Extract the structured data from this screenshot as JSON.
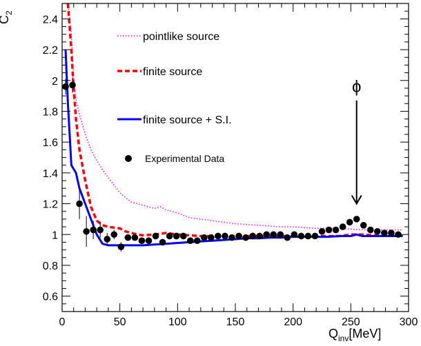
{
  "chart_data": {
    "type": "line",
    "title": "",
    "xlabel": {
      "main": "Q",
      "sub": "inv",
      "unit": "[MeV]"
    },
    "ylabel": {
      "main": "C",
      "sub": "2"
    },
    "xlim": [
      0,
      300
    ],
    "ylim": [
      0.5,
      2.5
    ],
    "x_ticks": [
      0,
      50,
      100,
      150,
      200,
      250,
      300
    ],
    "y_ticks": [
      0.6,
      0.8,
      1,
      1.2,
      1.4,
      1.6,
      1.8,
      2,
      2.2,
      2.4
    ],
    "x_tick_labels": [
      "0",
      "50",
      "100",
      "150",
      "200",
      "250",
      "300"
    ],
    "y_tick_labels": [
      "0.6",
      "0.8",
      "1",
      "1.2",
      "1.4",
      "1.6",
      "1.8",
      "2",
      "2.2",
      "2.4"
    ],
    "legend": {
      "placement": "upper-center",
      "entries": [
        {
          "label": "pointlike source",
          "series": "pointlike"
        },
        {
          "label": "finite source",
          "series": "finite"
        },
        {
          "label": "finite source + S.I.",
          "series": "finite_si"
        },
        {
          "label": "Experimental Data",
          "series": "data"
        }
      ]
    },
    "annotation": {
      "label": "ϕ",
      "x": 255,
      "arrow_from_y": 1.96,
      "arrow_to_y": 1.2
    },
    "series": [
      {
        "key": "pointlike",
        "style": "dotted",
        "color": "#ff00ff",
        "points": [
          [
            5,
            2.5
          ],
          [
            8,
            2.3
          ],
          [
            10,
            2.0
          ],
          [
            12,
            1.88
          ],
          [
            15,
            1.78
          ],
          [
            20,
            1.65
          ],
          [
            25,
            1.55
          ],
          [
            30,
            1.48
          ],
          [
            35,
            1.42
          ],
          [
            40,
            1.37
          ],
          [
            45,
            1.32
          ],
          [
            50,
            1.27
          ],
          [
            55,
            1.24
          ],
          [
            60,
            1.21
          ],
          [
            70,
            1.19
          ],
          [
            80,
            1.17
          ],
          [
            85,
            1.18
          ],
          [
            90,
            1.16
          ],
          [
            100,
            1.14
          ],
          [
            110,
            1.11
          ],
          [
            120,
            1.1
          ],
          [
            130,
            1.09
          ],
          [
            140,
            1.08
          ],
          [
            150,
            1.07
          ],
          [
            160,
            1.065
          ],
          [
            170,
            1.06
          ],
          [
            180,
            1.055
          ],
          [
            190,
            1.05
          ],
          [
            200,
            1.05
          ],
          [
            210,
            1.045
          ],
          [
            220,
            1.04
          ],
          [
            230,
            1.04
          ],
          [
            240,
            1.04
          ],
          [
            250,
            1.035
          ],
          [
            260,
            1.03
          ],
          [
            270,
            1.03
          ],
          [
            280,
            1.03
          ],
          [
            290,
            1.03
          ],
          [
            295,
            1.03
          ]
        ]
      },
      {
        "key": "finite",
        "style": "dashed",
        "color": "#ff0000",
        "points": [
          [
            5,
            2.5
          ],
          [
            8,
            2.2
          ],
          [
            10,
            1.95
          ],
          [
            12,
            1.75
          ],
          [
            15,
            1.55
          ],
          [
            20,
            1.35
          ],
          [
            25,
            1.18
          ],
          [
            30,
            1.09
          ],
          [
            35,
            1.06
          ],
          [
            40,
            1.05
          ],
          [
            50,
            1.04
          ],
          [
            55,
            1.02
          ],
          [
            60,
            1.01
          ],
          [
            65,
            1.0
          ],
          [
            70,
            0.995
          ],
          [
            80,
            1.0
          ],
          [
            90,
            1.01
          ],
          [
            100,
            1.0
          ],
          [
            110,
            0.995
          ],
          [
            120,
            0.99
          ],
          [
            130,
            0.99
          ],
          [
            140,
            0.99
          ],
          [
            150,
            0.99
          ],
          [
            160,
            0.99
          ],
          [
            170,
            0.99
          ],
          [
            180,
            0.99
          ],
          [
            190,
            0.99
          ],
          [
            200,
            0.99
          ],
          [
            210,
            0.99
          ],
          [
            220,
            0.99
          ],
          [
            230,
            0.99
          ],
          [
            240,
            0.99
          ],
          [
            250,
            1.0
          ],
          [
            260,
            1.0
          ],
          [
            270,
            0.995
          ],
          [
            280,
            0.995
          ],
          [
            290,
            0.995
          ],
          [
            295,
            0.995
          ]
        ]
      },
      {
        "key": "finite_si",
        "style": "solid",
        "color": "#0000ff",
        "points": [
          [
            3,
            2.2
          ],
          [
            5,
            1.85
          ],
          [
            8,
            1.45
          ],
          [
            12,
            1.4
          ],
          [
            15,
            1.3
          ],
          [
            20,
            1.2
          ],
          [
            25,
            1.1
          ],
          [
            30,
            1.0
          ],
          [
            35,
            0.94
          ],
          [
            40,
            0.93
          ],
          [
            50,
            0.93
          ],
          [
            60,
            0.93
          ],
          [
            70,
            0.93
          ],
          [
            80,
            0.935
          ],
          [
            90,
            0.94
          ],
          [
            100,
            0.945
          ],
          [
            110,
            0.95
          ],
          [
            120,
            0.955
          ],
          [
            130,
            0.96
          ],
          [
            140,
            0.965
          ],
          [
            150,
            0.97
          ],
          [
            160,
            0.975
          ],
          [
            170,
            0.975
          ],
          [
            180,
            0.98
          ],
          [
            190,
            0.98
          ],
          [
            200,
            0.985
          ],
          [
            210,
            0.985
          ],
          [
            220,
            0.985
          ],
          [
            230,
            0.985
          ],
          [
            240,
            0.99
          ],
          [
            250,
            0.99
          ],
          [
            255,
            1.0
          ],
          [
            260,
            0.99
          ],
          [
            270,
            0.99
          ],
          [
            280,
            0.99
          ],
          [
            290,
            0.99
          ],
          [
            295,
            0.99
          ]
        ]
      }
    ],
    "data_points": [
      {
        "x": 3,
        "y": 1.96,
        "err": 0.05
      },
      {
        "x": 9,
        "y": 1.97,
        "err": 0.05
      },
      {
        "x": 15,
        "y": 1.2,
        "err": 0.1
      },
      {
        "x": 21,
        "y": 1.02,
        "err": 0.1
      },
      {
        "x": 27,
        "y": 1.03,
        "err": 0.06
      },
      {
        "x": 33,
        "y": 1.03,
        "err": 0.05
      },
      {
        "x": 39,
        "y": 0.97,
        "err": 0.04
      },
      {
        "x": 45,
        "y": 1.0,
        "err": 0.03
      },
      {
        "x": 51,
        "y": 0.92,
        "err": 0.03
      },
      {
        "x": 57,
        "y": 0.98,
        "err": 0.02
      },
      {
        "x": 63,
        "y": 0.98,
        "err": 0.02
      },
      {
        "x": 69,
        "y": 0.96,
        "err": 0.02
      },
      {
        "x": 75,
        "y": 0.96,
        "err": 0.02
      },
      {
        "x": 81,
        "y": 0.99,
        "err": 0.02
      },
      {
        "x": 87,
        "y": 0.95,
        "err": 0.02
      },
      {
        "x": 93,
        "y": 0.99,
        "err": 0.015
      },
      {
        "x": 99,
        "y": 0.99,
        "err": 0.015
      },
      {
        "x": 105,
        "y": 0.99,
        "err": 0.015
      },
      {
        "x": 111,
        "y": 0.96,
        "err": 0.015
      },
      {
        "x": 117,
        "y": 0.96,
        "err": 0.015
      },
      {
        "x": 123,
        "y": 0.98,
        "err": 0.015
      },
      {
        "x": 129,
        "y": 0.98,
        "err": 0.015
      },
      {
        "x": 135,
        "y": 0.99,
        "err": 0.015
      },
      {
        "x": 141,
        "y": 0.99,
        "err": 0.015
      },
      {
        "x": 147,
        "y": 0.98,
        "err": 0.015
      },
      {
        "x": 153,
        "y": 0.99,
        "err": 0.015
      },
      {
        "x": 159,
        "y": 0.98,
        "err": 0.015
      },
      {
        "x": 165,
        "y": 0.99,
        "err": 0.015
      },
      {
        "x": 171,
        "y": 0.99,
        "err": 0.015
      },
      {
        "x": 177,
        "y": 1.0,
        "err": 0.015
      },
      {
        "x": 183,
        "y": 1.0,
        "err": 0.015
      },
      {
        "x": 189,
        "y": 1.0,
        "err": 0.015
      },
      {
        "x": 195,
        "y": 0.98,
        "err": 0.015
      },
      {
        "x": 201,
        "y": 1.0,
        "err": 0.015
      },
      {
        "x": 207,
        "y": 0.99,
        "err": 0.015
      },
      {
        "x": 213,
        "y": 0.99,
        "err": 0.015
      },
      {
        "x": 219,
        "y": 0.99,
        "err": 0.015
      },
      {
        "x": 225,
        "y": 1.02,
        "err": 0.015
      },
      {
        "x": 231,
        "y": 1.03,
        "err": 0.015
      },
      {
        "x": 237,
        "y": 1.03,
        "err": 0.015
      },
      {
        "x": 243,
        "y": 1.05,
        "err": 0.015
      },
      {
        "x": 249,
        "y": 1.08,
        "err": 0.015
      },
      {
        "x": 255,
        "y": 1.1,
        "err": 0.015
      },
      {
        "x": 261,
        "y": 1.06,
        "err": 0.015
      },
      {
        "x": 267,
        "y": 1.03,
        "err": 0.015
      },
      {
        "x": 273,
        "y": 1.02,
        "err": 0.015
      },
      {
        "x": 279,
        "y": 1.01,
        "err": 0.015
      },
      {
        "x": 285,
        "y": 1.01,
        "err": 0.015
      },
      {
        "x": 291,
        "y": 1.0,
        "err": 0.015
      }
    ]
  }
}
